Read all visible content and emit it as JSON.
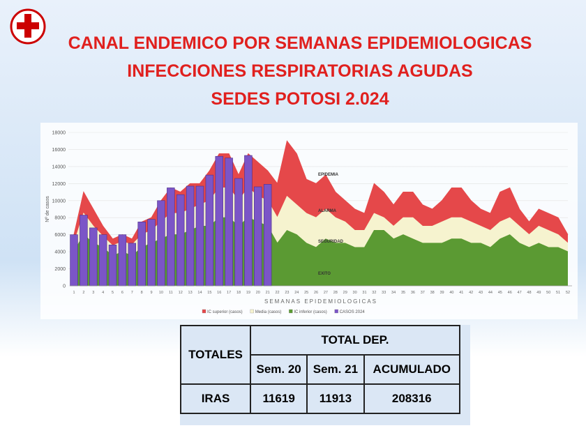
{
  "slide_title": [
    "CANAL ENDEMICO POR SEMANAS EPIDEMIOLOGICAS",
    "INFECCIONES RESPIRATORIAS AGUDAS",
    "SEDES POTOSI 2.024"
  ],
  "chart_data": {
    "type": "area",
    "ylabel": "Nº de casos",
    "xlabel": "SEMANAS EPIDEMIOLOGICAS",
    "categories": [
      1,
      2,
      3,
      4,
      5,
      6,
      7,
      8,
      9,
      10,
      11,
      12,
      13,
      14,
      15,
      16,
      17,
      18,
      19,
      20,
      21,
      22,
      23,
      24,
      25,
      26,
      27,
      28,
      29,
      30,
      31,
      32,
      33,
      34,
      35,
      36,
      37,
      38,
      39,
      40,
      41,
      42,
      43,
      44,
      45,
      46,
      47,
      48,
      49,
      50,
      51,
      52
    ],
    "ylim": [
      0,
      18000
    ],
    "yticks": [
      0,
      2000,
      4000,
      6000,
      8000,
      10000,
      12000,
      14000,
      16000,
      18000
    ],
    "annotations": [
      "EPIDEMIA",
      "ALARMA",
      "SEGURIDAD",
      "EXITO"
    ],
    "series": [
      {
        "name": "IC superior (casos)",
        "color": "#e5484a",
        "kind": "area",
        "values": [
          6000,
          11000,
          9000,
          7000,
          5500,
          6000,
          5500,
          7500,
          8000,
          10000,
          11500,
          11000,
          12000,
          12000,
          13500,
          15500,
          15500,
          13000,
          15500,
          14500,
          13500,
          12000,
          17000,
          15500,
          12500,
          12000,
          13000,
          11000,
          10000,
          9000,
          8500,
          12000,
          11000,
          9500,
          11000,
          11000,
          9500,
          9000,
          10000,
          11500,
          11500,
          10000,
          9000,
          8500,
          11000,
          11500,
          9000,
          7500,
          9000,
          8500,
          8000,
          6000
        ]
      },
      {
        "name": "Media (casos)",
        "color": "#f6f3cf",
        "kind": "area",
        "values": [
          5000,
          8500,
          7000,
          5800,
          4700,
          5200,
          4800,
          6000,
          6500,
          7500,
          8500,
          8500,
          9000,
          9500,
          10000,
          11500,
          11500,
          10000,
          11500,
          10500,
          10000,
          8000,
          10500,
          9500,
          8500,
          8000,
          9000,
          8000,
          7500,
          6500,
          6500,
          8500,
          8000,
          7000,
          8000,
          8000,
          7000,
          7000,
          7500,
          8000,
          8000,
          7500,
          7000,
          6500,
          7500,
          8000,
          7000,
          6000,
          7000,
          6500,
          6000,
          5000
        ]
      },
      {
        "name": "IC inferior (casos)",
        "color": "#5b9a33",
        "kind": "area",
        "values": [
          4000,
          6000,
          5000,
          4500,
          3500,
          4000,
          3500,
          4500,
          5000,
          5500,
          6000,
          6000,
          6500,
          7000,
          7000,
          8000,
          8000,
          7000,
          8000,
          7500,
          7000,
          5000,
          6500,
          6000,
          5000,
          4500,
          5500,
          5000,
          5000,
          4500,
          4500,
          6500,
          6500,
          5500,
          6000,
          5500,
          5000,
          5000,
          5000,
          5500,
          5500,
          5000,
          5000,
          4500,
          5500,
          6000,
          5000,
          4500,
          5000,
          4500,
          4500,
          4000
        ]
      },
      {
        "name": "CASOS 2024",
        "color": "#7b55c7",
        "kind": "bar",
        "values": [
          6000,
          8300,
          6800,
          6000,
          4800,
          6000,
          5000,
          7500,
          7800,
          10000,
          11500,
          10700,
          11700,
          11700,
          13000,
          15200,
          15000,
          12600,
          15300,
          11619,
          11913,
          null,
          null,
          null,
          null,
          null,
          null,
          null,
          null,
          null,
          null,
          null,
          null,
          null,
          null,
          null,
          null,
          null,
          null,
          null,
          null,
          null,
          null,
          null,
          null,
          null,
          null,
          null,
          null,
          null,
          null,
          null
        ]
      }
    ]
  },
  "table": {
    "header": [
      "TOTALES",
      "TOTAL DEP."
    ],
    "subheader": [
      "Sem. 20",
      "Sem. 21",
      "ACUMULADO"
    ],
    "rows": [
      [
        "IRAS",
        11619,
        11913,
        208316
      ]
    ]
  }
}
